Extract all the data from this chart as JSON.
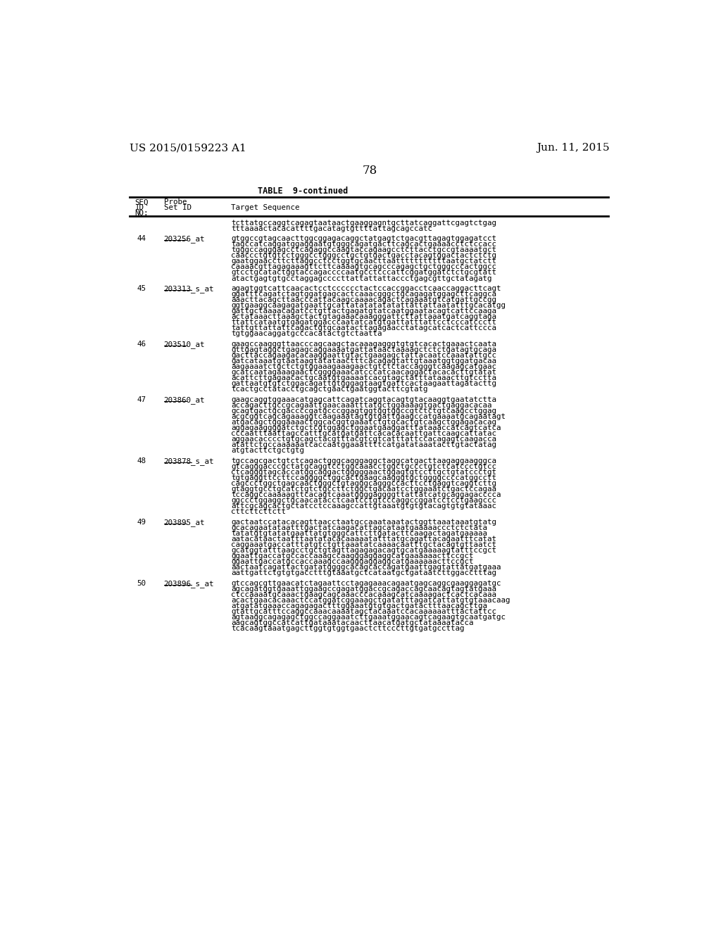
{
  "header_left": "US 2015/0159223 A1",
  "header_right": "Jun. 11, 2015",
  "page_number": "78",
  "table_title": "TABLE  9-continued",
  "background_color": "#ffffff",
  "text_color": "#000000",
  "rows": [
    {
      "seq_id": "",
      "probe_set": "",
      "sequence": "tcttatgccaggtcagagtaataactgaaggagntgcttatcaggattcgagtctgag\ntttaaaactacacattttgacatagtgttttattagcagccatc"
    },
    {
      "seq_id": "44",
      "probe_set": "203256_at",
      "sequence": "gtggccgtagcaacttggcggagacaggctatgagtctgacgttagagtggagatcct\ntagccatcaggatggaggaatgtgggcagatgacttcagcactgaaaacctctccacc\ntgggccagggagcctcagaggccaagtaccagaagcctcttacctgccgtaaaatgct\ncaaccctgtgtcctgggcctgggcctgctgtgactgacctacagtggactactctctg\ngaatggaaccttcttaggcctcctggtgcaacttaatttttttttttaatgctatctt\ncaaaacgttagagaaagttcttcaaaagtgcagcccagagctgctgggcccactggcc\ngtcctgcatactggtaccagaccccaatgcctcccattcggatggatctctgcgtatt\natactgagtgtgcctaggagccccttattattattaccctgagcgttgctatagatg"
    },
    {
      "seq_id": "45",
      "probe_set": "203313_s_at",
      "sequence": "agagtggtcattcaacactcctcccccctactccaccggacctcaaccaggacttcagt\nggatttcagatctagtggatgagcactcaaacgggctgcagagatggagcttcaggca\naaacttacagcttaacccattacaagcaaaacagactcagaaatgtcatgattgccgg\nggtgaaggcaagagatgaattgcattatatatatatattattattaatatttgcacatgg\ngattgctaaaacagatcctgttactgagatgtatcaatggaatacagtcattccaaga\nactataaacttaaagctactgtagaaacaaagggattcttattaaatgatcaggtaga\nttattcataatgtgagatggacccaatatcatgtgattatttattcctcccatccctt\ntattgttattattcagactgtgcaatacttagagaacctatagcatcactcattccca\ntgtggaacaggatgcccacatactgtctaatta"
    },
    {
      "seq_id": "46",
      "probe_set": "203510_at",
      "sequence": "gaagccaagggttaacccagcaagctacaaagagggtgtgtcacactgaaactcaata\ngttgagtaggctgagagcaggaaaatgattataactaaaagctctctgatagtgcaga\ngacttaccagaagacacaaggaattgtactgaagagctattacaatccaaatattgcc\ngatcataaatgtaataagtatataactttcacagagtattgtaaatggtggatgacaa\naagaaaatctgctctgtggaaagaaagaactgtctctaccagggtcaagagcatgaac\ngcatcaatagaaagaactcggggaaacatcccatcaacaggactacacacttgtatat\nacattcttgagaacactgcaatgtgaaaatcacgtagctatttataaacttgtcctta\ngattaatgtgtctggacagattgtgggagtaagtgattcactaagaattagatacttg\ntcactgcctatacctgcagctgaactgaatggtacttcgtatg"
    },
    {
      "seq_id": "47",
      "probe_set": "203860_at",
      "sequence": "gaagcaggtggaaacatgagcattcagatcaggtacagtgtacaaggtgaatatctta\naccagacttgccgcagaattgaacaaatttatgctggaaaagtgactgaggacacaa\ngcagtgactgcgaccccgatgcccggagtggtggtggccgtctctgtcaagcctggag\nacgcggtcagcagaaaggtcaagaaatagtgtgattgaagccatgaaaatgcagaatagt\natgacagctgggaaaactggcacggtgaaatctgtgcactgtcaagctggagacacag\naggagaaggggatctgctcgtggagctggaatgaaggatttataaaccatcagtcatca\ncccaatttaattagccatttgcatgatgattcacacacaattgattcaagcattatac\naggaacacccctgtgcagctacgtttacgtcgtcatttattccacagagtcaagacca\natattctgccaaaaaatcaccaatggaaattttcatgatataaatacttgtactatag\natgtacttctgctgtg"
    },
    {
      "seq_id": "48",
      "probe_set": "203878_s_at",
      "sequence": "tgccagcgactgtctcagactgggcagggaggctaggcatgacttaagaggaagggca\ngtcagggacccgctatgcaggtcctggcaaacctggctgccctgtctcatccctgtcc\nctcagggtagcaccatggcaggactgggggaactggagtgtccttgctgtatccctgt\ntgtgaggttccttccaggggctggcactgaagcaagggtgctggggccccatggcctt\ncagccctggctgagcaactgggctgtagggcagggccacttcctgaggtcaggtcttg\ngtaggtgcctgcatctgtctgccttctggctgacaatcctggaaatctgactccagaa\ntccaggccaaaaagttcacagtcaaatggggaggggttattatcatgcaggagacccca\nggccctggaggctgcaacatacctcaatcctgtcccaggccggatcctcctgaagccc\nattcgcagcactgctatcctccaaagccattgtaaatgtgtgtacagtgtgtataaac\ncttcttcttctt"
    },
    {
      "seq_id": "49",
      "probe_set": "203895_at",
      "sequence": "gactaatccatacacagttaacctaatgccaaataaatactggttaaataaatgtatg\ngcacagaatataatttgactatcaagacattagcataatgaaaaaccctctctata\ntatatgtgtatatgaattatgtgggcattcttgatacttcaagactagatgaaaaa\naatacataactaatttaatatacacaaaaatatttatgcagattacagaatttcatat\ncaggaaatgaccatttatgtctgttaaatatcaaaacaatttgctacagtgttaatct\ngcatggtatttaagcctgctgtagttagagagacagtgcatgaaaaagtatttccgct\nggaattgaccatgccaccaaagccaagggaggaggcatgaaaaaacttccgct\nggaattgaccatgccaccaaagccaagggaggaggcatgaaaaaacttccgct\naactaatcagattactgatatggggcacagcaccagatgaattgagtattatgatgaaa\naattgattctgtgtgacctttgtaaatgctcataatgctgataatcttggacctttag"
    },
    {
      "seq_id": "50",
      "probe_set": "203896_s_at",
      "sequence": "gtccagcgttgaacatctagaattcctagagaaacagaatgagcaggcgaaggagatgc\nagcagatggtgaaattggaagccgagatggaccgcagaccagcaacagtagtatgaaa\nctccaaaatgcaaactgaagcagcaaacccacaaagcatcaaaagactcactcacaaa\nacactgaacacaaactccatggatcggaaagctgatatttagatcattatgtgtaaacaag\natgatatgaaaccagagagactttggaaatgtgtgactgatactttaacagcttga\ngtattgcatttccaggccaaacaaaatagctacaaatccacaaaaaatttactattcc\nagtaaggcagagagctggccaggaaatcttgaaatggaacagtcagaagtgcaatgatgc\naagcagtggccatcattgataaatacaacttaacatgatgctataaaatacca\ntcacaagtaaatgagcttggtgtggtgaactcttcccttgtgatgccttag"
    }
  ]
}
